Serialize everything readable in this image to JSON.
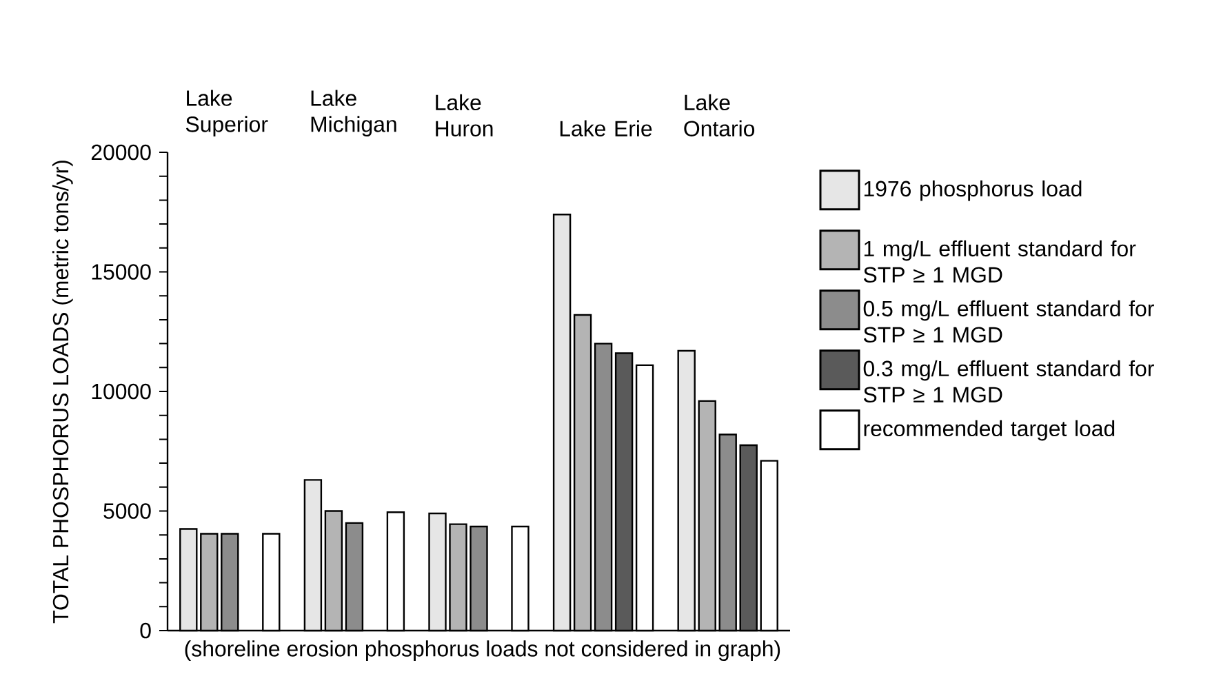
{
  "chart_data": {
    "type": "bar",
    "ylabel": "TOTAL PHOSPHORUS LOADS (metric tons/yr)",
    "categories": [
      "Lake Superior",
      "Lake Michigan",
      "Lake Huron",
      "Lake Erie",
      "Lake Ontario"
    ],
    "series": [
      {
        "name": "1976 phosphorus load",
        "color": "#e6e6e6",
        "values": [
          4250,
          6300,
          4900,
          17400,
          11700
        ]
      },
      {
        "name": "1 mg/L effluent standard for STP ≥ 1 MGD",
        "color": "#b4b4b4",
        "values": [
          4050,
          5000,
          4450,
          13200,
          9600
        ]
      },
      {
        "name": "0.5 mg/L effluent standard for STP ≥ 1 MGD",
        "color": "#8c8c8c",
        "values": [
          4050,
          4500,
          4350,
          12000,
          8200
        ]
      },
      {
        "name": "0.3 mg/L effluent standard for STP ≥ 1 MGD",
        "color": "#5a5a5a",
        "values": [
          null,
          null,
          null,
          11600,
          7750
        ]
      },
      {
        "name": "recommended target load",
        "color": "#ffffff",
        "values": [
          4050,
          4950,
          4350,
          11100,
          7100
        ]
      }
    ],
    "ylim": [
      0,
      20000
    ],
    "yticks": [
      0,
      {
        "value": 1000,
        "label": null
      },
      {
        "value": 2000,
        "label": null
      },
      {
        "value": 3000,
        "label": null
      },
      {
        "value": 4000,
        "label": null
      },
      5000,
      {
        "value": 6000,
        "label": null
      },
      {
        "value": 7000,
        "label": null
      },
      {
        "value": 8000,
        "label": null
      },
      {
        "value": 9000,
        "label": null
      },
      10000,
      {
        "value": 11000,
        "label": null
      },
      {
        "value": 12000,
        "label": null
      },
      {
        "value": 13000,
        "label": null
      },
      {
        "value": 14000,
        "label": null
      },
      15000,
      {
        "value": 16000,
        "label": null
      },
      {
        "value": 17000,
        "label": null
      },
      {
        "value": 18000,
        "label": null
      },
      {
        "value": 19000,
        "label": null
      },
      20000
    ],
    "legend": "right",
    "annotations": [
      "(shoreline erosion phosphorus loads not considered in graph)"
    ]
  }
}
